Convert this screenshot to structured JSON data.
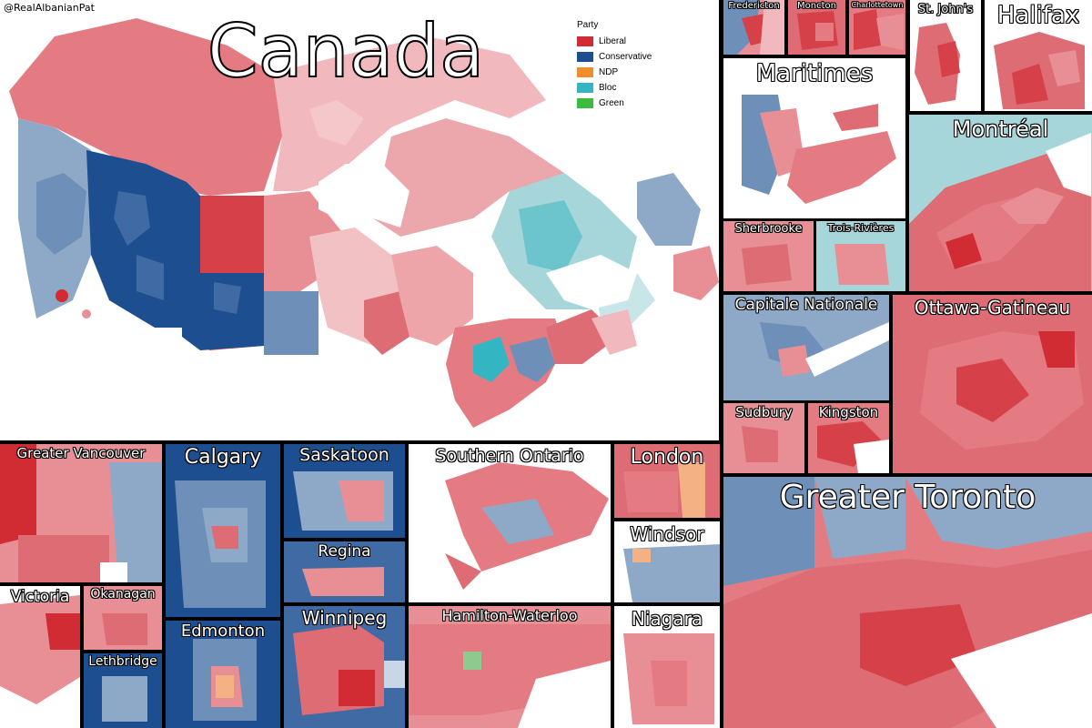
{
  "credit": "@RealAlbanianPat",
  "main_title": "Canada",
  "legend": {
    "title": "Party",
    "items": [
      {
        "label": "Liberal",
        "color": "#d12b33"
      },
      {
        "label": "Conservative",
        "color": "#1d4e8f"
      },
      {
        "label": "NDP",
        "color": "#f28d2c"
      },
      {
        "label": "Bloc",
        "color": "#33b6c2"
      },
      {
        "label": "Green",
        "color": "#3cbc3c"
      }
    ]
  },
  "insets": {
    "fredericton": "Fredericton",
    "moncton": "Moncton",
    "charlottetown": "Charlottetown",
    "st_johns": "St. John's",
    "halifax": "Halifax",
    "maritimes": "Maritimes",
    "montreal": "Montréal",
    "sherbrooke": "Sherbrooke",
    "trois_rivieres": "Trois-Rivières",
    "capitale_nationale": "Capitale Nationale",
    "ottawa_gatineau": "Ottawa-Gatineau",
    "sudbury": "Sudbury",
    "kingston": "Kingston",
    "greater_toronto": "Greater Toronto",
    "greater_vancouver": "Greater Vancouver",
    "calgary": "Calgary",
    "saskatoon": "Saskatoon",
    "regina": "Regina",
    "southern_ontario": "Southern Ontario",
    "london": "London",
    "windsor": "Windsor",
    "victoria": "Victoria",
    "okanagan": "Okanagan",
    "lethbridge": "Lethbridge",
    "edmonton": "Edmonton",
    "winnipeg": "Winnipeg",
    "hamilton_waterloo": "Hamilton-Waterloo",
    "niagara": "Niagara"
  }
}
